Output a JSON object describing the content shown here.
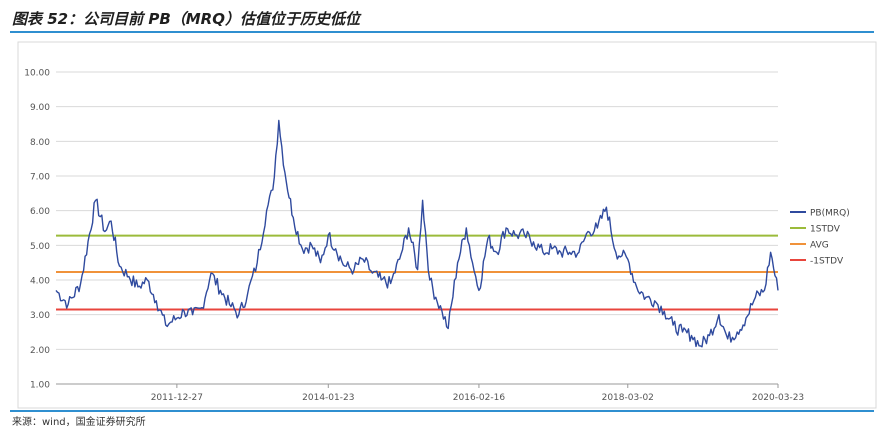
{
  "header": {
    "title": "图表 52：公司目前 PB（MRQ）估值位于历史低位"
  },
  "footer": {
    "source": "来源：wind，国金证券研究所"
  },
  "colors": {
    "pb": "#2f4a9e",
    "stdv_plus": "#9bbb3a",
    "avg": "#f0923a",
    "stdv_minus": "#e8453c",
    "rule": "#2f8fd0"
  },
  "chart_data": {
    "type": "line",
    "title": "",
    "xlabel": "",
    "ylabel": "",
    "ylim": [
      1.0,
      10.0
    ],
    "yticks": [
      "1.00",
      "2.00",
      "3.00",
      "4.00",
      "5.00",
      "6.00",
      "7.00",
      "8.00",
      "9.00",
      "10.00"
    ],
    "xlim": [
      "2010-05-01",
      "2020-03-23"
    ],
    "xticks": [
      "2011-12-27",
      "2014-01-23",
      "2016-02-16",
      "2018-03-02",
      "2020-03-23"
    ],
    "grid": true,
    "legend_position": "right",
    "series": [
      {
        "name": "PB(MRQ)",
        "x": [
          "2010-05-01",
          "2010-07-01",
          "2010-09-01",
          "2010-11-15",
          "2011-01-01",
          "2011-02-01",
          "2011-03-15",
          "2011-05-01",
          "2011-06-15",
          "2011-08-01",
          "2011-09-15",
          "2011-11-01",
          "2011-12-27",
          "2012-02-01",
          "2012-03-15",
          "2012-05-01",
          "2012-06-15",
          "2012-08-01",
          "2012-09-15",
          "2012-11-01",
          "2012-12-15",
          "2013-02-01",
          "2013-03-20",
          "2013-04-20",
          "2013-05-20",
          "2013-06-20",
          "2013-08-01",
          "2013-09-15",
          "2013-11-01",
          "2013-12-15",
          "2014-01-23",
          "2014-03-01",
          "2014-04-15",
          "2014-06-01",
          "2014-07-15",
          "2014-09-01",
          "2014-10-15",
          "2014-12-01",
          "2015-01-15",
          "2015-03-01",
          "2015-04-15",
          "2015-05-10",
          "2015-06-15",
          "2015-07-15",
          "2015-08-15",
          "2015-09-15",
          "2015-11-01",
          "2015-12-15",
          "2016-01-15",
          "2016-02-16",
          "2016-04-01",
          "2016-05-15",
          "2016-07-01",
          "2016-08-15",
          "2016-10-01",
          "2016-11-15",
          "2017-01-01",
          "2017-02-15",
          "2017-04-01",
          "2017-05-15",
          "2017-07-01",
          "2017-08-15",
          "2017-10-01",
          "2017-11-15",
          "2018-01-01",
          "2018-02-01",
          "2018-03-02",
          "2018-04-15",
          "2018-06-01",
          "2018-07-15",
          "2018-09-01",
          "2018-10-15",
          "2018-12-01",
          "2019-01-15",
          "2019-03-01",
          "2019-04-15",
          "2019-06-01",
          "2019-07-15",
          "2019-09-01",
          "2019-10-15",
          "2019-12-01",
          "2020-01-15",
          "2020-02-15",
          "2020-03-23"
        ],
        "values": [
          3.7,
          3.3,
          3.9,
          6.3,
          5.4,
          5.7,
          4.4,
          4.1,
          3.8,
          4.0,
          3.4,
          2.7,
          2.9,
          3.1,
          3.0,
          3.2,
          4.2,
          3.7,
          3.3,
          3.0,
          3.6,
          4.5,
          6.0,
          6.6,
          8.6,
          7.1,
          5.8,
          4.9,
          5.0,
          4.5,
          5.3,
          4.9,
          4.4,
          4.3,
          4.6,
          4.2,
          4.0,
          3.9,
          4.6,
          5.5,
          4.3,
          6.3,
          4.0,
          3.5,
          3.1,
          2.6,
          4.5,
          5.5,
          4.5,
          3.7,
          5.2,
          4.8,
          5.5,
          5.3,
          5.3,
          5.1,
          4.8,
          4.9,
          4.8,
          4.8,
          4.8,
          5.4,
          5.5,
          6.1,
          4.8,
          4.7,
          4.6,
          3.8,
          3.5,
          3.4,
          3.1,
          2.7,
          2.5,
          2.4,
          2.1,
          2.4,
          3.0,
          2.3,
          2.5,
          2.9,
          3.5,
          3.7,
          4.8,
          3.7
        ]
      },
      {
        "name": "1STDV",
        "values": [
          5.28
        ]
      },
      {
        "name": "AVG",
        "values": [
          4.23
        ]
      },
      {
        "name": "-1STDV",
        "values": [
          3.15
        ]
      }
    ]
  }
}
